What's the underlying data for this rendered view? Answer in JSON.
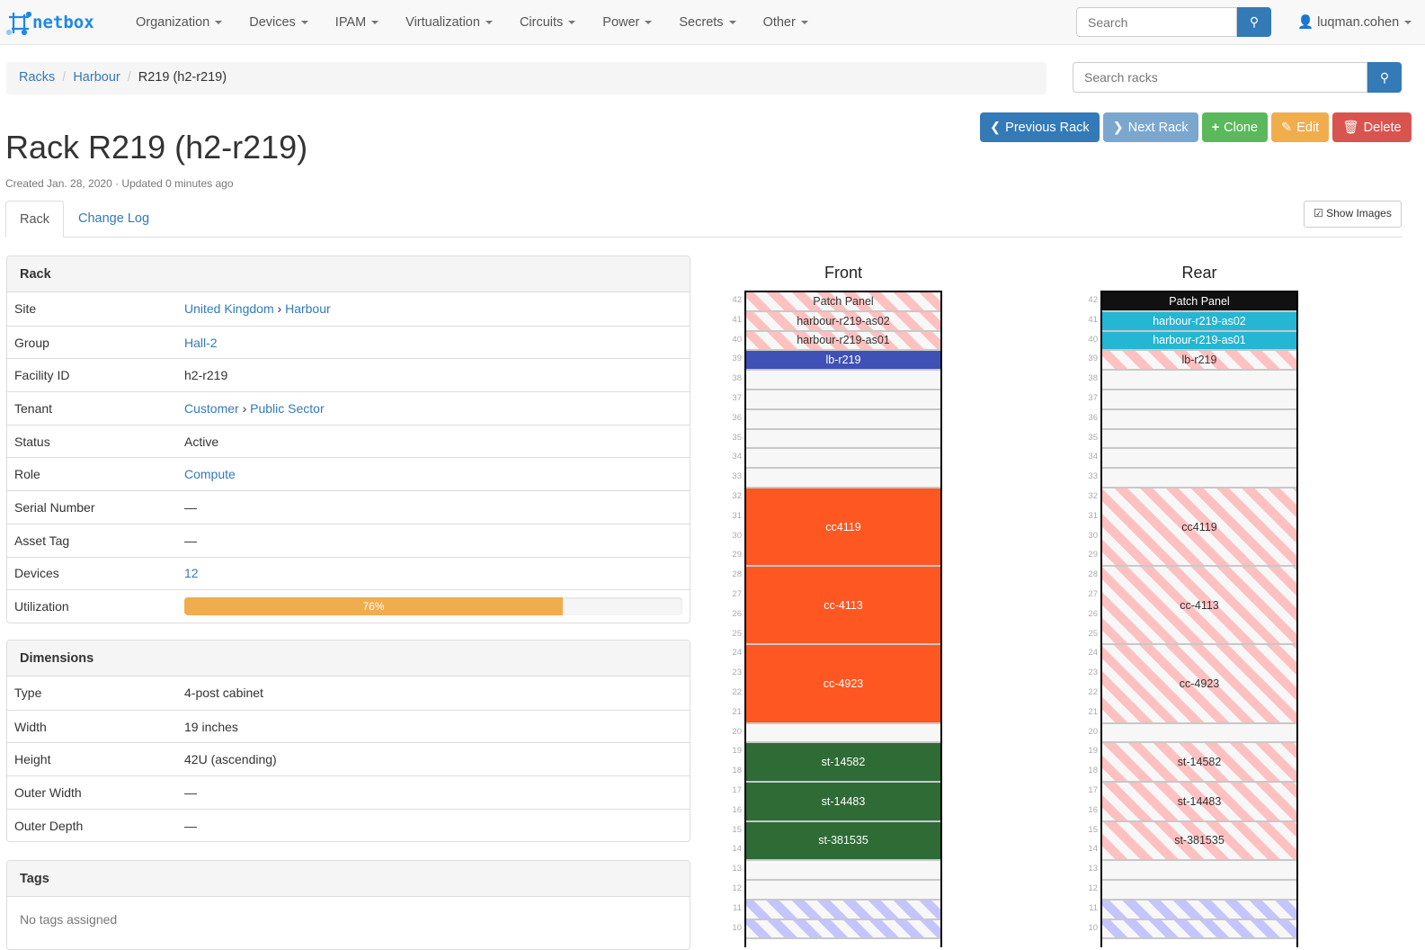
{
  "nav": {
    "brand": "netbox",
    "menu": [
      "Organization",
      "Devices",
      "IPAM",
      "Virtualization",
      "Circuits",
      "Power",
      "Secrets",
      "Other"
    ],
    "search_placeholder": "Search",
    "user": "luqman.cohen"
  },
  "breadcrumb": [
    "Racks",
    "Harbour",
    "R219 (h2-r219)"
  ],
  "rack_search_placeholder": "Search racks",
  "title": "Rack R219 (h2-r219)",
  "meta": "Created Jan. 28, 2020 · Updated 0 minutes ago",
  "buttons": {
    "previous": "Previous Rack",
    "next": "Next Rack",
    "clone": "Clone",
    "edit": "Edit",
    "delete": "Delete",
    "show_images": "Show Images"
  },
  "tabs": [
    "Rack",
    "Change Log"
  ],
  "rack_panel": {
    "title": "Rack",
    "rows": [
      {
        "k": "Site",
        "v": [
          "United Kingdom",
          "Harbour"
        ],
        "link": true
      },
      {
        "k": "Group",
        "v": [
          "Hall-2"
        ],
        "link": true
      },
      {
        "k": "Facility ID",
        "v": [
          "h2-r219"
        ]
      },
      {
        "k": "Tenant",
        "v": [
          "Customer",
          "Public Sector"
        ],
        "link": true
      },
      {
        "k": "Status",
        "v": [
          "Active"
        ]
      },
      {
        "k": "Role",
        "v": [
          "Compute"
        ],
        "link": true
      },
      {
        "k": "Serial Number",
        "v": [
          "—"
        ]
      },
      {
        "k": "Asset Tag",
        "v": [
          "—"
        ]
      },
      {
        "k": "Devices",
        "v": [
          "12"
        ],
        "link": true
      }
    ],
    "utilization_label": "Utilization",
    "utilization": 76,
    "utilization_text": "76%"
  },
  "dimensions": {
    "title": "Dimensions",
    "rows": [
      {
        "k": "Type",
        "v": "4-post cabinet"
      },
      {
        "k": "Width",
        "v": "19 inches"
      },
      {
        "k": "Height",
        "v": "42U (ascending)"
      },
      {
        "k": "Outer Width",
        "v": "—"
      },
      {
        "k": "Outer Depth",
        "v": "—"
      }
    ]
  },
  "tags": {
    "title": "Tags",
    "empty": "No tags assigned"
  },
  "elevation": {
    "front_title": "Front",
    "rear_title": "Rear",
    "colors": {
      "lb": "#3f51b5",
      "compute": "#ff5722",
      "storage": "#2e6b35",
      "black": "#111111",
      "cyan": "#24b6d2"
    },
    "devices": [
      {
        "name": "Patch Panel",
        "u": 42,
        "h": 1,
        "front": "stripe-pink",
        "rear": "black"
      },
      {
        "name": "harbour-r219-as02",
        "u": 41,
        "h": 1,
        "front": "stripe-pink",
        "rear": "cyan"
      },
      {
        "name": "harbour-r219-as01",
        "u": 40,
        "h": 1,
        "front": "stripe-pink",
        "rear": "cyan"
      },
      {
        "name": "lb-r219",
        "u": 39,
        "h": 1,
        "front": "lb",
        "rear": "stripe-pink"
      },
      {
        "name": "cc4119",
        "u": 29,
        "h": 4,
        "front": "compute",
        "rear": "stripe-pink"
      },
      {
        "name": "cc-4113",
        "u": 25,
        "h": 4,
        "front": "compute",
        "rear": "stripe-pink"
      },
      {
        "name": "cc-4923",
        "u": 21,
        "h": 4,
        "front": "compute",
        "rear": "stripe-pink"
      },
      {
        "name": "st-14582",
        "u": 18,
        "h": 2,
        "front": "storage",
        "rear": "stripe-pink"
      },
      {
        "name": "st-14483",
        "u": 16,
        "h": 2,
        "front": "storage",
        "rear": "stripe-pink"
      },
      {
        "name": "st-381535",
        "u": 14,
        "h": 2,
        "front": "storage",
        "rear": "stripe-pink"
      }
    ],
    "reserved_units": [
      11,
      10
    ]
  }
}
